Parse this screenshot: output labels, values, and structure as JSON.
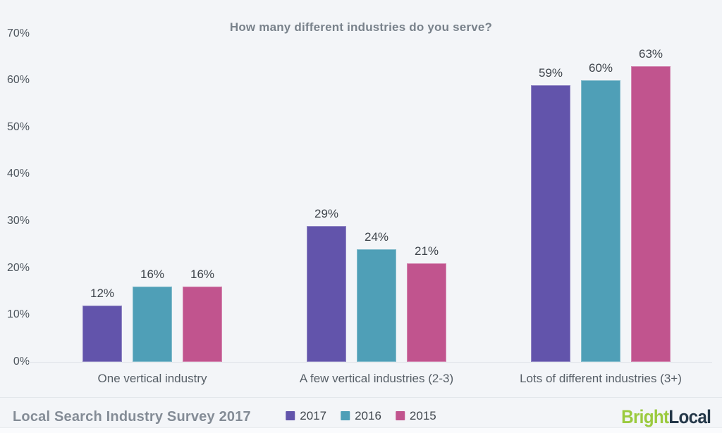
{
  "chart_data": {
    "type": "bar",
    "title": "How many different industries do you serve?",
    "categories": [
      "One vertical industry",
      "A few vertical industries (2-3)",
      "Lots of different industries (3+)"
    ],
    "series": [
      {
        "name": "2017",
        "color": "#6254ab",
        "values": [
          12,
          29,
          59
        ]
      },
      {
        "name": "2016",
        "color": "#4f9fb7",
        "values": [
          16,
          24,
          60
        ]
      },
      {
        "name": "2015",
        "color": "#c1548e",
        "values": [
          16,
          21,
          63
        ]
      }
    ],
    "value_label_format": "{v}%",
    "y_ticks": [
      70,
      60,
      50,
      40,
      30,
      20,
      10,
      0
    ],
    "y_tick_suffix": "%",
    "ylim": [
      0,
      70
    ],
    "grid": false,
    "legend_position": "bottom-center"
  },
  "footer": {
    "source_label": "Local Search Industry Survey 2017",
    "logo": {
      "bright": "Bright",
      "local": "Local"
    }
  },
  "colors": {
    "background": "#f3f5f8",
    "axis_line": "#e0e4e9",
    "title_text": "#79828b",
    "tick_text": "#4e565e",
    "value_text": "#3e444b",
    "category_text": "#565e66",
    "footer_text": "#848c96",
    "legend_text": "#40474e",
    "divider": "#e3e7eb",
    "logo_bright": "#9bca3e",
    "logo_local": "#253849"
  }
}
